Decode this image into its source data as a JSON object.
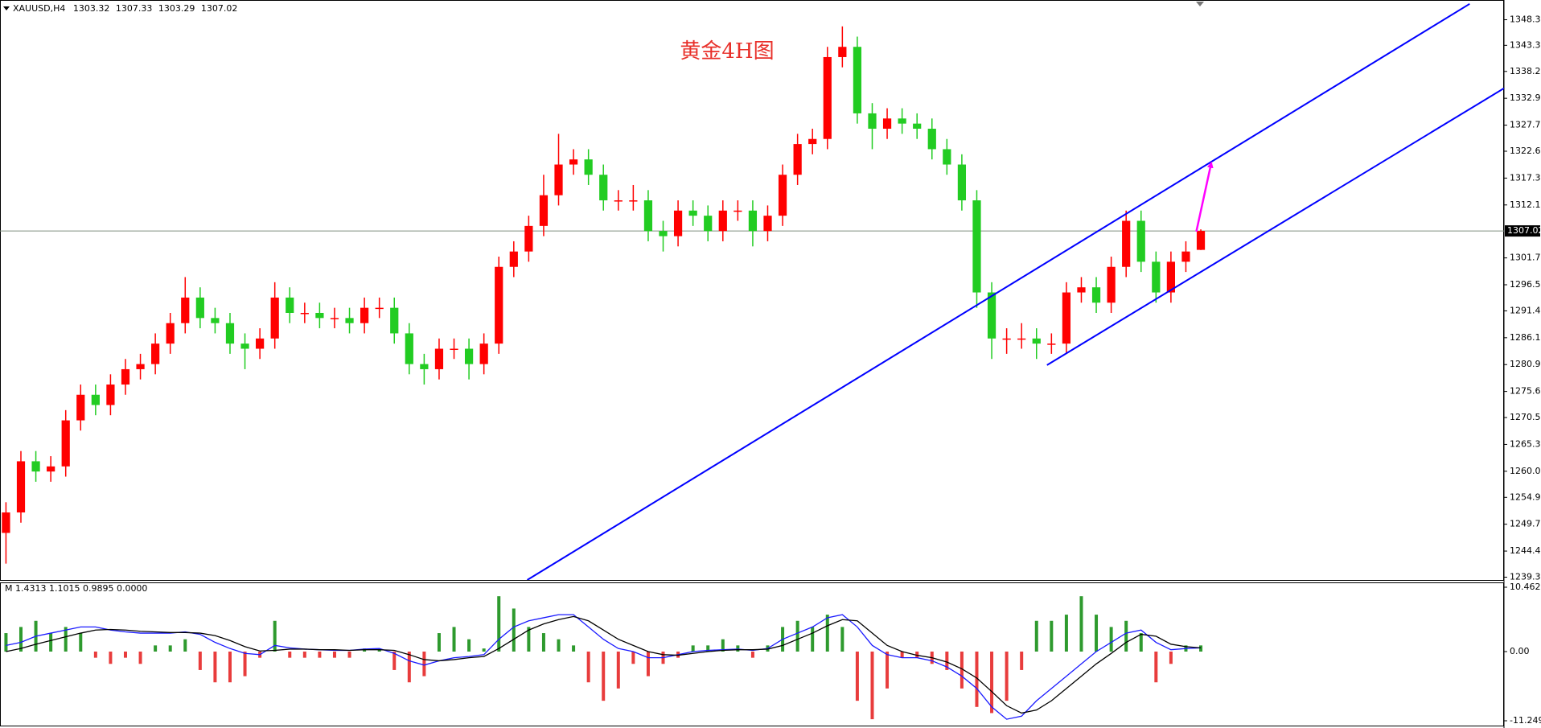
{
  "chart_data": [
    {
      "type": "candlestick",
      "symbol": "XAUUSD,H4",
      "title": "黄金4H图",
      "up_color": "#ff0000",
      "down_color": "#22cc22",
      "xlim": [
        -0.4,
        100.3
      ],
      "ylim": [
        1238.8,
        1352.0
      ],
      "yticks": [
        {
          "value": 1348.3,
          "label": "1348.30"
        },
        {
          "value": 1343.3,
          "label": "1343.30"
        },
        {
          "value": 1338.2,
          "label": "1338.20"
        },
        1332.95,
        {
          "value": 1327.7,
          "label": "1327.70"
        },
        {
          "value": 1322.6,
          "label": "1322.60"
        },
        1317.35,
        {
          "value": 1312.1,
          "label": "1312.10"
        },
        1301.75,
        {
          "value": 1296.5,
          "label": "1296.50"
        },
        {
          "value": 1291.4,
          "label": "1291.40"
        },
        1286.15,
        {
          "value": 1280.9,
          "label": "1280.90"
        },
        1275.65,
        1270.55,
        {
          "value": 1265.3,
          "label": "1265.30"
        },
        1260.05,
        1254.95,
        {
          "value": 1249.7,
          "label": "1249.70"
        },
        1244.45,
        1239.35
      ],
      "current_price": 1307.02,
      "open": [
        1248,
        1252,
        1262,
        1260,
        1261,
        1270,
        1275,
        1273,
        1277,
        1280,
        1281,
        1285,
        1289,
        1294,
        1290,
        1289,
        1285,
        1284,
        1286,
        1294,
        1291,
        1291,
        1290,
        1290,
        1289,
        1292,
        1292,
        1287,
        1281,
        1280,
        1284,
        1284,
        1281,
        1285,
        1300,
        1303,
        1308,
        1314,
        1320,
        1321,
        1318,
        1313,
        1313,
        1313,
        1307,
        1306,
        1311,
        1310,
        1307,
        1311,
        1311,
        1307,
        1310,
        1318,
        1324,
        1325,
        1341,
        1343,
        1330,
        1327,
        1329,
        1328,
        1327,
        1323,
        1320,
        1313,
        1295,
        1286,
        1286,
        1286,
        1285,
        1285,
        1295,
        1296,
        1293,
        1300,
        1309,
        1301,
        1295,
        1301,
        1303.32
      ],
      "high": [
        1254,
        1264,
        1264,
        1263,
        1272,
        1277,
        1277,
        1279,
        1282,
        1283,
        1287,
        1291,
        1298,
        1296,
        1292,
        1291,
        1287,
        1288,
        1297,
        1296,
        1293,
        1293,
        1292,
        1292,
        1294,
        1294,
        1294,
        1289,
        1283,
        1286,
        1286,
        1286,
        1287,
        1302,
        1305,
        1310,
        1318,
        1326,
        1323,
        1323,
        1320,
        1315,
        1316,
        1315,
        1309,
        1313,
        1313,
        1312,
        1313,
        1313,
        1313,
        1312,
        1320,
        1326,
        1327,
        1343,
        1347,
        1345,
        1332,
        1331,
        1331,
        1330,
        1329,
        1325,
        1322,
        1315,
        1297,
        1288,
        1289,
        1288,
        1287,
        1297,
        1298,
        1298,
        1302,
        1311,
        1311,
        1303,
        1303,
        1305,
        1307.33
      ],
      "low": [
        1242,
        1250,
        1258,
        1258,
        1259,
        1268,
        1271,
        1271,
        1275,
        1278,
        1279,
        1283,
        1287,
        1288,
        1287,
        1283,
        1280,
        1282,
        1284,
        1289,
        1289,
        1288,
        1288,
        1287,
        1287,
        1290,
        1285,
        1279,
        1277,
        1278,
        1282,
        1278,
        1279,
        1283,
        1298,
        1301,
        1306,
        1312,
        1318,
        1316,
        1311,
        1311,
        1311,
        1305,
        1303,
        1304,
        1308,
        1305,
        1305,
        1309,
        1304,
        1305,
        1308,
        1316,
        1322,
        1323,
        1339,
        1328,
        1323,
        1325,
        1326,
        1325,
        1321,
        1318,
        1311,
        1292,
        1282,
        1283,
        1284,
        1282,
        1283,
        1283,
        1293,
        1291,
        1291,
        1298,
        1299,
        1293,
        1293,
        1299,
        1303.29
      ],
      "close": [
        1252,
        1262,
        1260,
        1261,
        1270,
        1275,
        1273,
        1277,
        1280,
        1281,
        1285,
        1289,
        1294,
        1290,
        1289,
        1285,
        1284,
        1286,
        1294,
        1291,
        1291,
        1290,
        1290,
        1289,
        1292,
        1292,
        1287,
        1281,
        1280,
        1284,
        1284,
        1281,
        1285,
        1300,
        1303,
        1308,
        1314,
        1320,
        1321,
        1318,
        1313,
        1313,
        1313,
        1307,
        1306,
        1311,
        1310,
        1307,
        1311,
        1311,
        1307,
        1310,
        1318,
        1324,
        1325,
        1341,
        1343,
        1330,
        1327,
        1329,
        1328,
        1327,
        1323,
        1320,
        1313,
        1295,
        1286,
        1286,
        1286,
        1285,
        1285,
        1295,
        1296,
        1293,
        1300,
        1309,
        1301,
        1295,
        1301,
        1303,
        1307.02
      ],
      "trendlines": [
        {
          "color": "#0000ff",
          "x": [
            34.9,
            98.0
          ],
          "y": [
            1238.8,
            1351.4
          ]
        },
        {
          "color": "#0000ff",
          "x": [
            69.7,
            100.3
          ],
          "y": [
            1280.8,
            1334.9
          ]
        }
      ],
      "arrow": {
        "color": "#ff00ff",
        "x": [
          79.7,
          80.7
        ],
        "y": [
          1306.9,
          1320.3
        ]
      }
    },
    {
      "type": "macd",
      "label": "M 1.4313 1.1015 0.9895 0.0000",
      "ylim": [
        -11.2498,
        10.4628
      ],
      "yticks": [
        10.4628,
        {
          "value": 0,
          "label": "0.00"
        },
        -11.2498
      ],
      "positive_color": "#2e9a2e",
      "negative_color": "#e83c3c",
      "histogram": [
        3,
        4,
        5,
        3,
        4,
        3,
        -1,
        -2,
        -1,
        -2,
        1,
        1,
        2,
        -3,
        -5,
        -5,
        -4,
        -1,
        5,
        -1,
        -1,
        -1,
        -1,
        -1,
        0.5,
        0.5,
        -3,
        -5,
        -4,
        3,
        4,
        2,
        0.5,
        9,
        7,
        4,
        3,
        2,
        1,
        -5,
        -8,
        -6,
        -2,
        -4,
        -2,
        -1,
        1,
        1,
        2,
        1,
        -1,
        1,
        4,
        5,
        4,
        6,
        4,
        -8,
        -11,
        -6,
        -1,
        -1,
        -2,
        -3,
        -6,
        -9,
        -10,
        -8,
        -3,
        5,
        5,
        6,
        9,
        6,
        4,
        5,
        3,
        -5,
        -2,
        1,
        1
      ],
      "series": [
        {
          "color": "#1a1aff",
          "values": [
            1,
            1.5,
            2.5,
            3,
            3.5,
            4,
            4,
            3.5,
            3.2,
            3,
            3,
            3,
            3.2,
            2.8,
            1.5,
            0.5,
            -0.3,
            -0.5,
            1,
            0.6,
            0.4,
            0.3,
            0.2,
            0.2,
            0.4,
            0.5,
            -0.3,
            -1.5,
            -2.2,
            -1.5,
            -1,
            -0.8,
            -0.5,
            2,
            4,
            5,
            5.5,
            6,
            6,
            4,
            2,
            0.5,
            0,
            -1,
            -1,
            -0.5,
            0,
            0.2,
            0.3,
            0.4,
            0.2,
            0.5,
            2,
            3,
            4,
            5.5,
            6,
            4,
            1,
            -0.5,
            -1,
            -1,
            -1.5,
            -2.5,
            -4,
            -6,
            -9,
            -11,
            -10.5,
            -8,
            -6,
            -4,
            -2,
            0,
            1.5,
            3,
            3.5,
            1.5,
            0.3,
            0.5,
            0.6
          ]
        },
        {
          "color": "#000000",
          "values": [
            0,
            0.5,
            1.2,
            1.8,
            2.4,
            3,
            3.5,
            3.6,
            3.5,
            3.3,
            3.2,
            3.1,
            3.1,
            3,
            2.6,
            1.8,
            0.8,
            0.1,
            0.2,
            0.4,
            0.4,
            0.3,
            0.3,
            0.2,
            0.3,
            0.3,
            0.2,
            -0.5,
            -1.3,
            -1.5,
            -1.3,
            -1,
            -0.8,
            0.5,
            2,
            3.5,
            4.5,
            5.2,
            5.7,
            5,
            3.5,
            2,
            1,
            0,
            -0.5,
            -0.6,
            -0.3,
            0,
            0.2,
            0.3,
            0.3,
            0.4,
            1,
            2,
            3,
            4.2,
            5.2,
            5,
            3,
            1,
            0,
            -0.6,
            -1,
            -1.7,
            -2.8,
            -4.3,
            -6.5,
            -8.8,
            -10,
            -9.5,
            -8,
            -6,
            -4,
            -2,
            -0.3,
            1.5,
            2.8,
            2.5,
            1.2,
            0.8,
            0.6
          ]
        }
      ]
    }
  ]
}
